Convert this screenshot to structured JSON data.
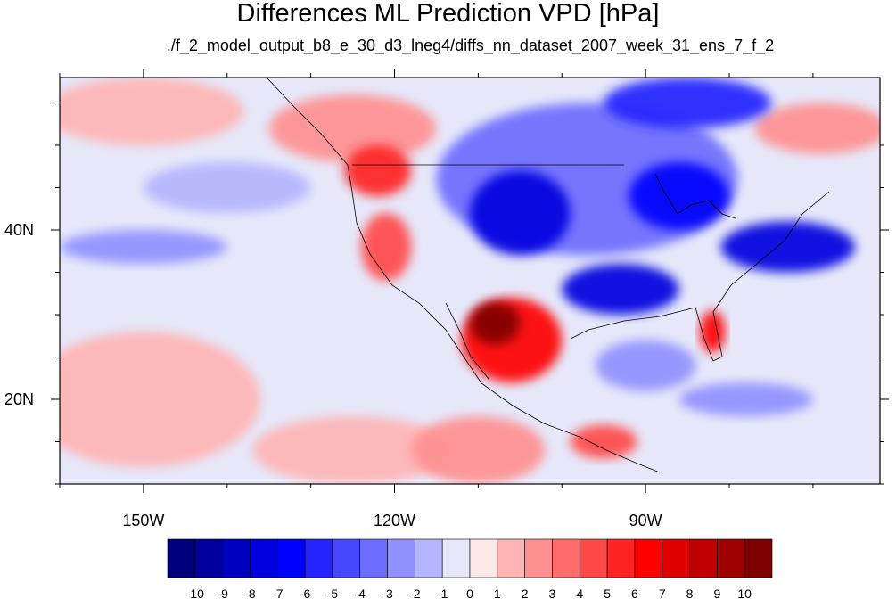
{
  "title": "Differences ML Prediction VPD [hPa]",
  "subtitle": "./f_2_model_output_b8_e_30_d3_lneg4/diffs_nn_dataset_2007_week_31_ens_7_f_2",
  "map": {
    "lon_range": [
      -160,
      -62
    ],
    "lat_range": [
      10,
      58
    ],
    "x_ticks": [
      {
        "lon": -150,
        "label": "150W"
      },
      {
        "lon": -120,
        "label": "120W"
      },
      {
        "lon": -90,
        "label": "90W"
      }
    ],
    "y_ticks": [
      {
        "lat": 40,
        "label": "40N"
      },
      {
        "lat": 20,
        "label": "20N"
      }
    ],
    "background_color": "#e6e8fa",
    "regions": [
      {
        "name": "pacific-warm-sw",
        "lon": -150,
        "lat": 20,
        "rx": 14,
        "ry": 8,
        "value": 1
      },
      {
        "name": "pacific-warm-s",
        "lon": -125,
        "lat": 14,
        "rx": 12,
        "ry": 4,
        "value": 1
      },
      {
        "name": "pacific-warm-nw",
        "lon": -150,
        "lat": 54,
        "rx": 12,
        "ry": 4,
        "value": 1
      },
      {
        "name": "eastern-pacific-tropical",
        "lon": -110,
        "lat": 14,
        "rx": 8,
        "ry": 4,
        "value": 2
      },
      {
        "name": "pacific-northwest",
        "lon": -125,
        "lat": 52,
        "rx": 10,
        "ry": 4,
        "value": 2
      },
      {
        "name": "pacific-northwest-core",
        "lon": -122,
        "lat": 47,
        "rx": 4,
        "ry": 3,
        "value": 5
      },
      {
        "name": "california",
        "lon": -121,
        "lat": 38,
        "rx": 3,
        "ry": 4,
        "value": 4
      },
      {
        "name": "mexico-west",
        "lon": -106,
        "lat": 27,
        "rx": 6,
        "ry": 5,
        "value": 6
      },
      {
        "name": "mexico-west-core",
        "lon": -108,
        "lat": 29,
        "rx": 3,
        "ry": 2.5,
        "value": 10
      },
      {
        "name": "central-america",
        "lon": -95,
        "lat": 15,
        "rx": 4,
        "ry": 2,
        "value": 4
      },
      {
        "name": "florida",
        "lon": -82,
        "lat": 28,
        "rx": 1.5,
        "ry": 2.5,
        "value": 6
      },
      {
        "name": "canada-east",
        "lon": -69,
        "lat": 52,
        "rx": 8,
        "ry": 3,
        "value": 2
      },
      {
        "name": "north-america-interior",
        "lon": -97,
        "lat": 46,
        "rx": 18,
        "ry": 9,
        "value": -3
      },
      {
        "name": "rockies-plains",
        "lon": -105,
        "lat": 42,
        "rx": 6,
        "ry": 5,
        "value": -7
      },
      {
        "name": "great-lakes",
        "lon": -86,
        "lat": 44,
        "rx": 6,
        "ry": 4,
        "value": -6
      },
      {
        "name": "northeast-atlantic",
        "lon": -73,
        "lat": 38,
        "rx": 8,
        "ry": 3,
        "value": -7
      },
      {
        "name": "south-central-us",
        "lon": -93,
        "lat": 33,
        "rx": 7,
        "ry": 3,
        "value": -7
      },
      {
        "name": "hudson-bay",
        "lon": -85,
        "lat": 55,
        "rx": 10,
        "ry": 3,
        "value": -5
      },
      {
        "name": "gulf-of-mexico",
        "lon": -90,
        "lat": 24,
        "rx": 6,
        "ry": 3,
        "value": -2
      },
      {
        "name": "caribbean",
        "lon": -78,
        "lat": 20,
        "rx": 8,
        "ry": 2,
        "value": -2
      },
      {
        "name": "north-pacific-cool",
        "lon": -140,
        "lat": 45,
        "rx": 10,
        "ry": 3,
        "value": -1
      },
      {
        "name": "subtropical-pacific-cool",
        "lon": -150,
        "lat": 38,
        "rx": 10,
        "ry": 2,
        "value": -2
      }
    ]
  },
  "colorbar": {
    "colors": [
      "#00007f",
      "#00009f",
      "#0000c0",
      "#0000df",
      "#0000ff",
      "#2424ff",
      "#4848ff",
      "#6c6cff",
      "#9090ff",
      "#b4b4ff",
      "#e6e8fa",
      "#fde8e8",
      "#ffb4b4",
      "#ff9090",
      "#ff6c6c",
      "#ff4848",
      "#ff2424",
      "#ff0000",
      "#df0000",
      "#c00000",
      "#9f0000",
      "#7f0000"
    ],
    "labels": [
      "-10",
      "-9",
      "-8",
      "-7",
      "-6",
      "-5",
      "-4",
      "-3",
      "-2",
      "-1",
      "0",
      "1",
      "2",
      "3",
      "4",
      "5",
      "6",
      "7",
      "8",
      "9",
      "10"
    ]
  }
}
